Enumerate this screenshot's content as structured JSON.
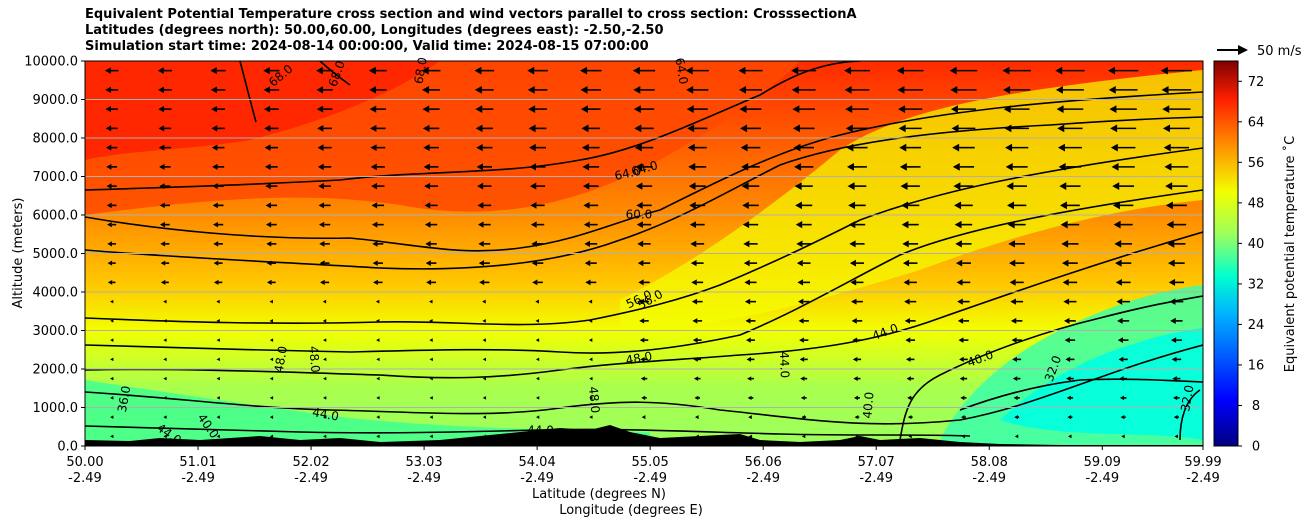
{
  "chart_data": {
    "type": "heatmap",
    "title_lines": [
      "Equivalent Potential Temperature cross section and wind vectors parallel to cross section: CrosssectionA",
      "Latitudes (degrees north): 50.00,60.00, Longitudes (degrees east): -2.50,-2.50",
      "Simulation start time: 2024-08-14 00:00:00, Valid time: 2024-08-15 07:00:00"
    ],
    "xlabel_1": "Latitude (degrees N)",
    "xlabel_2": "Longitude (degrees E)",
    "ylabel": "Altitude (meters)",
    "x_range": [
      50.0,
      59.99
    ],
    "y_range": [
      0,
      10000
    ],
    "x_ticks": [
      {
        "lat": "50.00",
        "lon": "-2.49",
        "value": 50.0
      },
      {
        "lat": "51.01",
        "lon": "-2.49",
        "value": 51.01
      },
      {
        "lat": "52.02",
        "lon": "-2.49",
        "value": 52.02
      },
      {
        "lat": "53.03",
        "lon": "-2.49",
        "value": 53.03
      },
      {
        "lat": "54.04",
        "lon": "-2.49",
        "value": 54.04
      },
      {
        "lat": "55.05",
        "lon": "-2.49",
        "value": 55.05
      },
      {
        "lat": "56.06",
        "lon": "-2.49",
        "value": 56.06
      },
      {
        "lat": "57.07",
        "lon": "-2.49",
        "value": 57.07
      },
      {
        "lat": "58.08",
        "lon": "-2.49",
        "value": 58.08
      },
      {
        "lat": "59.09",
        "lon": "-2.49",
        "value": 59.09
      },
      {
        "lat": "59.99",
        "lon": "-2.49",
        "value": 59.99
      }
    ],
    "y_ticks": [
      "0.0",
      "1000.0",
      "2000.0",
      "3000.0",
      "4000.0",
      "5000.0",
      "6000.0",
      "7000.0",
      "8000.0",
      "9000.0",
      "10000.0"
    ],
    "grid": "horizontal",
    "colorbar": {
      "label": "Equivalent potential temperature ˚C",
      "min": 0,
      "max": 76,
      "ticks": [
        "0",
        "8",
        "16",
        "24",
        "32",
        "40",
        "48",
        "56",
        "64",
        "72"
      ]
    },
    "wind_key": {
      "label": "50 m/s",
      "speed": 50
    },
    "wind_direction": "from north (vectors pointing toward lower latitude)",
    "contour_labels": [
      {
        "text": "68.0",
        "lat": 51.75,
        "alt": 9620,
        "rot": -40
      },
      {
        "text": "68.0",
        "lat": 52.25,
        "alt": 9670,
        "rot": -70
      },
      {
        "text": "68.0",
        "lat": 53.0,
        "alt": 9750,
        "rot": -80
      },
      {
        "text": "64.0",
        "lat": 55.33,
        "alt": 9740,
        "rot": 80
      },
      {
        "text": "64.0",
        "lat": 54.85,
        "alt": 7080,
        "rot": -12
      },
      {
        "text": "64.0",
        "lat": 55.0,
        "alt": 7210,
        "rot": -15
      },
      {
        "text": "60.0",
        "lat": 54.95,
        "alt": 6010,
        "rot": 0
      },
      {
        "text": "56.0",
        "lat": 54.95,
        "alt": 3810,
        "rot": -25
      },
      {
        "text": "56.0",
        "lat": 55.05,
        "alt": 3800,
        "rot": -30
      },
      {
        "text": "48.0",
        "lat": 54.95,
        "alt": 2280,
        "rot": -10
      },
      {
        "text": "48.0",
        "lat": 51.75,
        "alt": 2250,
        "rot": -80
      },
      {
        "text": "48.0",
        "lat": 52.05,
        "alt": 2250,
        "rot": 85
      },
      {
        "text": "48.0",
        "lat": 54.55,
        "alt": 1200,
        "rot": 85
      },
      {
        "text": "44.0",
        "lat": 52.15,
        "alt": 820,
        "rot": 10
      },
      {
        "text": "44.0",
        "lat": 56.25,
        "alt": 2110,
        "rot": 88
      },
      {
        "text": "44.0",
        "lat": 57.15,
        "alt": 2960,
        "rot": -20
      },
      {
        "text": "44.0",
        "lat": 50.75,
        "alt": 310,
        "rot": 35
      },
      {
        "text": "44.0",
        "lat": 54.07,
        "alt": 400,
        "rot": 0
      },
      {
        "text": "40.0",
        "lat": 58.0,
        "alt": 2270,
        "rot": -20
      },
      {
        "text": "40.0",
        "lat": 57.0,
        "alt": 1060,
        "rot": -85
      },
      {
        "text": "40.0",
        "lat": 51.1,
        "alt": 520,
        "rot": 55
      },
      {
        "text": "36.0",
        "lat": 50.35,
        "alt": 1220,
        "rot": -80
      },
      {
        "text": "32.0",
        "lat": 58.65,
        "alt": 2010,
        "rot": -70
      },
      {
        "text": "32.0",
        "lat": 59.85,
        "alt": 1240,
        "rot": -80
      }
    ]
  }
}
